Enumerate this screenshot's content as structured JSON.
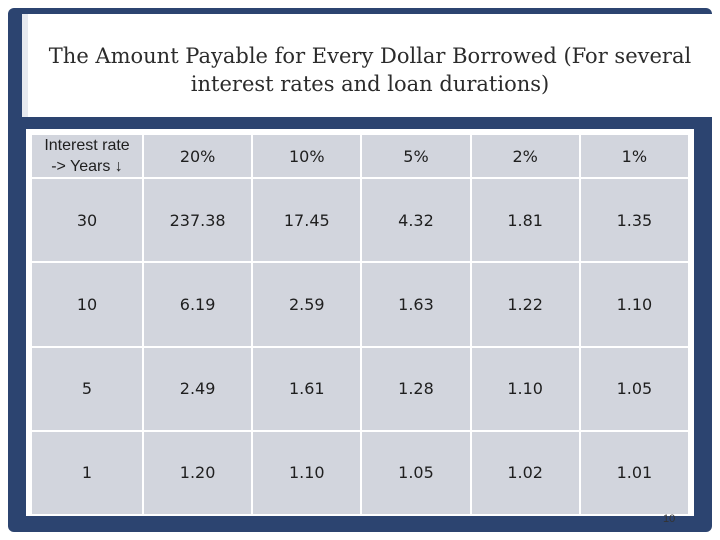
{
  "title_line1": "The Amount Payable for Every Dollar Borrowed  (For several",
  "title_line2": "interest rates and loan durations)",
  "table": {
    "corner_line1": "Interest rate",
    "corner_line2": "-> Years ↓",
    "headers": [
      "20%",
      "10%",
      "5%",
      "2%",
      "1%"
    ],
    "rows": [
      {
        "years": "30",
        "values": [
          "237.38",
          "17.45",
          "4.32",
          "1.81",
          "1.35"
        ]
      },
      {
        "years": "10",
        "values": [
          "6.19",
          "2.59",
          "1.63",
          "1.22",
          "1.10"
        ]
      },
      {
        "years": "5",
        "values": [
          "2.49",
          "1.61",
          "1.28",
          "1.10",
          "1.05"
        ]
      },
      {
        "years": "1",
        "values": [
          "1.20",
          "1.10",
          "1.05",
          "1.02",
          "1.01"
        ]
      }
    ]
  },
  "page_number": "10",
  "colors": {
    "frame": "#2c4470",
    "cell": "#d2d5dd",
    "text": "#1f1f1f"
  }
}
